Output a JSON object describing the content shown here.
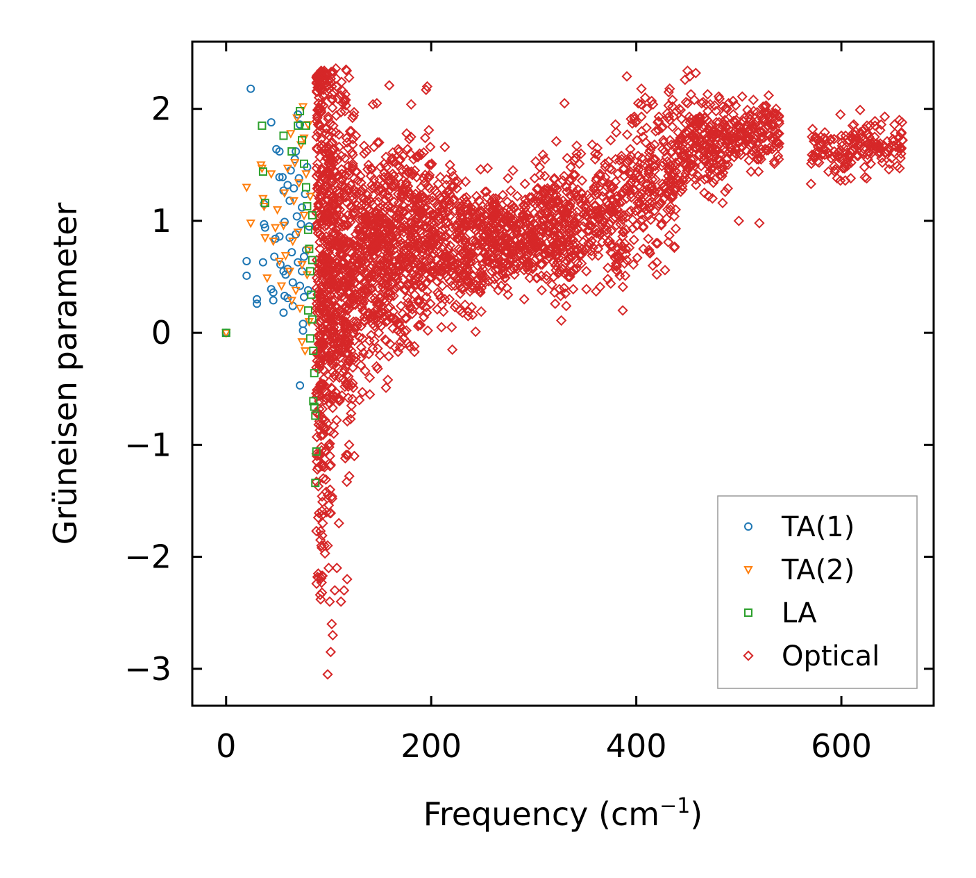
{
  "chart_data": {
    "type": "scatter",
    "title": "",
    "xlabel": "Frequency (cm",
    "xlabel_sup": "−1",
    "xlabel_suffix": ")",
    "ylabel": "Grüneisen parameter",
    "xlim": [
      -33,
      690
    ],
    "ylim": [
      -3.33,
      2.6
    ],
    "xticks": [
      0,
      200,
      400,
      600
    ],
    "xtick_labels": [
      "0",
      "200",
      "400",
      "600"
    ],
    "yticks": [
      -3,
      -2,
      -1,
      0,
      1,
      2
    ],
    "ytick_labels": [
      "−3",
      "−2",
      "−1",
      "0",
      "1",
      "2"
    ],
    "grid": false,
    "legend_position": "bottom-right",
    "series": [
      {
        "name": "TA(1)",
        "marker": "circle",
        "color": "#1f77b4",
        "points": [
          [
            0,
            0
          ],
          [
            24,
            2.18
          ],
          [
            20,
            0.64
          ],
          [
            20,
            0.51
          ],
          [
            30,
            0.3
          ],
          [
            30,
            0.26
          ],
          [
            36,
            0.63
          ],
          [
            37,
            0.97
          ],
          [
            38,
            0.94
          ],
          [
            37,
            1.15
          ],
          [
            44,
            1.88
          ],
          [
            44,
            0.39
          ],
          [
            46,
            0.36
          ],
          [
            46,
            0.29
          ],
          [
            47,
            0.68
          ],
          [
            48,
            0.84
          ],
          [
            49,
            1.64
          ],
          [
            52,
            0.86
          ],
          [
            52,
            1.62
          ],
          [
            52,
            1.39
          ],
          [
            53,
            0.61
          ],
          [
            55,
            1.39
          ],
          [
            56,
            1.27
          ],
          [
            56,
            0.18
          ],
          [
            56,
            0.55
          ],
          [
            57,
            0.33
          ],
          [
            57,
            0.99
          ],
          [
            58,
            0.52
          ],
          [
            60,
            1.32
          ],
          [
            60,
            0.57
          ],
          [
            60,
            0.31
          ],
          [
            62,
            0.85
          ],
          [
            62,
            1.18
          ],
          [
            63,
            1.45
          ],
          [
            64,
            0.72
          ],
          [
            65,
            0.24
          ],
          [
            65,
            0.45
          ],
          [
            66,
            1.29
          ],
          [
            67,
            1.55
          ],
          [
            68,
            0.88
          ],
          [
            69,
            1.04
          ],
          [
            70,
            0.63
          ],
          [
            71,
            1.38
          ],
          [
            72,
            0.42
          ],
          [
            73,
            0.97
          ],
          [
            74,
            0.55
          ],
          [
            74,
            1.12
          ],
          [
            75,
            0.02
          ],
          [
            75,
            0.08
          ],
          [
            76,
            0.32
          ],
          [
            77,
            1.24
          ],
          [
            78,
            0.74
          ],
          [
            72,
            -0.47
          ],
          [
            79,
            1.48
          ],
          [
            80,
            0.38
          ],
          [
            81,
            0.95
          ],
          [
            70,
            1.95
          ],
          [
            68,
            1.62
          ],
          [
            72,
            1.86
          ],
          [
            76,
            0.68
          ]
        ]
      },
      {
        "name": "TA(2)",
        "marker": "triangle-down",
        "color": "#ff7f0e",
        "points": [
          [
            0,
            0
          ],
          [
            20,
            1.3
          ],
          [
            24,
            0.98
          ],
          [
            34,
            1.5
          ],
          [
            35,
            1.47
          ],
          [
            36,
            1.2
          ],
          [
            37,
            1.13
          ],
          [
            38,
            0.85
          ],
          [
            40,
            0.49
          ],
          [
            44,
            1.42
          ],
          [
            46,
            0.82
          ],
          [
            48,
            0.94
          ],
          [
            50,
            1.1
          ],
          [
            52,
            0.64
          ],
          [
            54,
            0.42
          ],
          [
            56,
            0.96
          ],
          [
            57,
            1.25
          ],
          [
            58,
            0.69
          ],
          [
            60,
            1.47
          ],
          [
            62,
            0.55
          ],
          [
            63,
            1.78
          ],
          [
            64,
            0.29
          ],
          [
            65,
            0.82
          ],
          [
            66,
            1.18
          ],
          [
            67,
            1.52
          ],
          [
            68,
            0.38
          ],
          [
            69,
            1.92
          ],
          [
            70,
            0.9
          ],
          [
            71,
            1.34
          ],
          [
            72,
            0.22
          ],
          [
            73,
            1.68
          ],
          [
            74,
            -0.08
          ],
          [
            74,
            0.61
          ],
          [
            75,
            2.02
          ],
          [
            76,
            1.05
          ],
          [
            77,
            -0.16
          ],
          [
            78,
            1.42
          ],
          [
            79,
            0.52
          ],
          [
            80,
            1.86
          ],
          [
            81,
            0.1
          ],
          [
            82,
            1.22
          ],
          [
            80,
            0.74
          ],
          [
            76,
            1.74
          ]
        ]
      },
      {
        "name": "LA",
        "marker": "square",
        "color": "#2ca02c",
        "points": [
          [
            0,
            0
          ],
          [
            35,
            1.85
          ],
          [
            36,
            1.44
          ],
          [
            38,
            1.16
          ],
          [
            56,
            1.76
          ],
          [
            64,
            1.62
          ],
          [
            70,
            1.85
          ],
          [
            72,
            1.98
          ],
          [
            74,
            1.72
          ],
          [
            76,
            1.51
          ],
          [
            78,
            1.3
          ],
          [
            79,
            1.13
          ],
          [
            80,
            0.92
          ],
          [
            81,
            0.75
          ],
          [
            82,
            0.55
          ],
          [
            83,
            0.34
          ],
          [
            84,
            0.12
          ],
          [
            85,
            -0.16
          ],
          [
            86,
            -0.36
          ],
          [
            85,
            -0.61
          ],
          [
            86,
            -0.66
          ],
          [
            87,
            -0.74
          ],
          [
            88,
            -1.06
          ],
          [
            87,
            -1.34
          ],
          [
            84,
            1.05
          ],
          [
            80,
            0.2
          ],
          [
            82,
            -0.05
          ],
          [
            78,
            1.85
          ],
          [
            84,
            0.65
          ]
        ]
      },
      {
        "name": "Optical",
        "marker": "diamond",
        "color": "#d62728",
        "points": []
      }
    ]
  },
  "legend": {
    "items": [
      "TA(1)",
      "TA(2)",
      "LA",
      "Optical"
    ]
  }
}
